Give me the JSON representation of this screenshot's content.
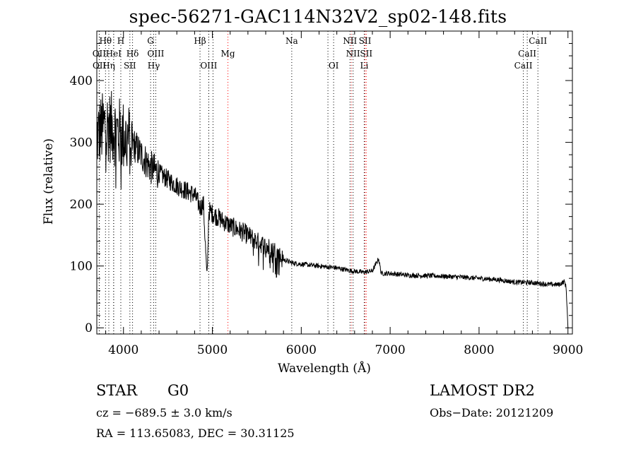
{
  "chart_data": {
    "type": "line",
    "title": "spec-56271-GAC114N32V2_sp02-148.fits",
    "xlabel": "Wavelength (Å)",
    "ylabel": "Flux (relative)",
    "xlim": [
      3700,
      9050
    ],
    "ylim": [
      -10,
      480
    ],
    "xticks": [
      4000,
      5000,
      6000,
      7000,
      8000,
      9000
    ],
    "yticks": [
      0,
      100,
      200,
      300,
      400
    ],
    "grid": false,
    "series": [
      {
        "name": "spectrum",
        "x": [
          3700,
          3750,
          3800,
          3850,
          3900,
          3950,
          4000,
          4050,
          4100,
          4150,
          4200,
          4250,
          4300,
          4350,
          4400,
          4450,
          4500,
          4600,
          4700,
          4800,
          4862,
          4900,
          4940,
          4960,
          5000,
          5100,
          5200,
          5300,
          5400,
          5500,
          5600,
          5700,
          5800,
          5900,
          6000,
          6200,
          6400,
          6563,
          6700,
          6800,
          6870,
          6900,
          7000,
          7200,
          7500,
          7800,
          8000,
          8200,
          8400,
          8600,
          8800,
          8900,
          8960,
          8980,
          9000
        ],
        "y": [
          310,
          320,
          330,
          325,
          320,
          315,
          310,
          305,
          300,
          290,
          280,
          270,
          260,
          255,
          250,
          245,
          240,
          230,
          222,
          215,
          195,
          200,
          75,
          190,
          185,
          175,
          165,
          158,
          150,
          140,
          132,
          125,
          110,
          105,
          103,
          100,
          97,
          92,
          90,
          92,
          112,
          88,
          88,
          85,
          84,
          82,
          80,
          78,
          74,
          73,
          70,
          70,
          75,
          65,
          0
        ]
      }
    ],
    "line_markers": [
      {
        "label": "Hθ",
        "wave": 3798,
        "color": "#000000",
        "row": 0
      },
      {
        "label": "H",
        "wave": 3970,
        "color": "#000000",
        "row": 0
      },
      {
        "label": "G",
        "wave": 4305,
        "color": "#000000",
        "row": 0
      },
      {
        "label": "Hβ",
        "wave": 4861,
        "color": "#000000",
        "row": 0
      },
      {
        "label": "Na",
        "wave": 5893,
        "color": "#000000",
        "row": 0
      },
      {
        "label": "NII",
        "wave": 6548,
        "color": "#000000",
        "row": 0
      },
      {
        "label": "SII",
        "wave": 6717,
        "color": "#ff0000",
        "row": 0
      },
      {
        "label": "CaII",
        "wave": 8662,
        "color": "#000000",
        "row": 0
      },
      {
        "label": "OII",
        "wave": 3727,
        "color": "#000000",
        "row": 1
      },
      {
        "label": "HeI",
        "wave": 3889,
        "color": "#000000",
        "row": 1
      },
      {
        "label": "Hδ",
        "wave": 4102,
        "color": "#000000",
        "row": 1
      },
      {
        "label": "OIII",
        "wave": 4363,
        "color": "#000000",
        "row": 1
      },
      {
        "label": "Mg",
        "wave": 5175,
        "color": "#ff0000",
        "row": 1
      },
      {
        "label": "NII",
        "wave": 6583,
        "color": "#000000",
        "row": 1
      },
      {
        "label": "SII",
        "wave": 6731,
        "color": "#ff0000",
        "row": 1
      },
      {
        "label": "CaII",
        "wave": 8542,
        "color": "#000000",
        "row": 1
      },
      {
        "label": "OII",
        "wave": 3729,
        "color": "#000000",
        "row": 2
      },
      {
        "label": "Hη",
        "wave": 3835,
        "color": "#000000",
        "row": 2
      },
      {
        "label": "SII",
        "wave": 4072,
        "color": "#000000",
        "row": 2
      },
      {
        "label": "Hγ",
        "wave": 4340,
        "color": "#000000",
        "row": 2
      },
      {
        "label": "OIII",
        "wave": 4959,
        "color": "#000000",
        "row": 2
      },
      {
        "label": "OI",
        "wave": 6364,
        "color": "#000000",
        "row": 2
      },
      {
        "label": "Li",
        "wave": 6708,
        "color": "#000000",
        "row": 2
      },
      {
        "label": "CaII",
        "wave": 8498,
        "color": "#000000",
        "row": 2
      }
    ],
    "extra_marker_lines": [
      {
        "wave": 3890,
        "color": "#000000"
      },
      {
        "wave": 4960,
        "color": "#000000"
      },
      {
        "wave": 5007,
        "color": "#000000"
      },
      {
        "wave": 6300,
        "color": "#000000"
      },
      {
        "wave": 6563,
        "color": "#ff0000"
      }
    ]
  },
  "info": {
    "classification": "STAR",
    "subclass": "G0",
    "survey": "LAMOST DR2",
    "redshift_text": "cz = −689.5 ± 3.0 km/s",
    "obs_date": "Obs−Date: 20121209",
    "coords": "RA = 113.65083, DEC =  30.31125"
  }
}
